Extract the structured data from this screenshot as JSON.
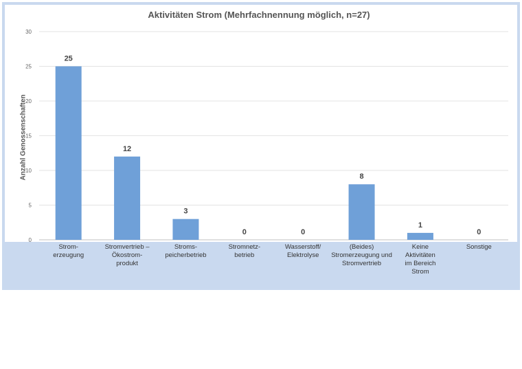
{
  "chart_data": {
    "type": "bar",
    "title": "Aktivitäten Strom (Mehrfachnennung möglich, n=27)",
    "ylabel": "Anzahl Genossenschaften",
    "xlabel": "",
    "ylim": [
      0,
      30
    ],
    "yticks": [
      "0",
      "5",
      "10",
      "15",
      "20",
      "25",
      "30"
    ],
    "grid": true,
    "legend": "none",
    "categories": [
      "Strom-\nerzeugung",
      "Stromvertrieb –\nÖkostrom-\nprodukt",
      "Stroms-\npeicherbetrieb",
      "Stromnetz-\nbetrieb",
      "Wasserstoff/\nElektrolyse",
      "(Beides)\nStromerzeugung und\nStromvertrieb",
      "Keine\nAktivitäten\nim Bereich\nStrom",
      "Sonstige"
    ],
    "values": [
      25,
      12,
      3,
      0,
      0,
      8,
      1,
      0
    ],
    "bar_color": "#6fa0d8",
    "frame_color": "#c9d9ef"
  }
}
